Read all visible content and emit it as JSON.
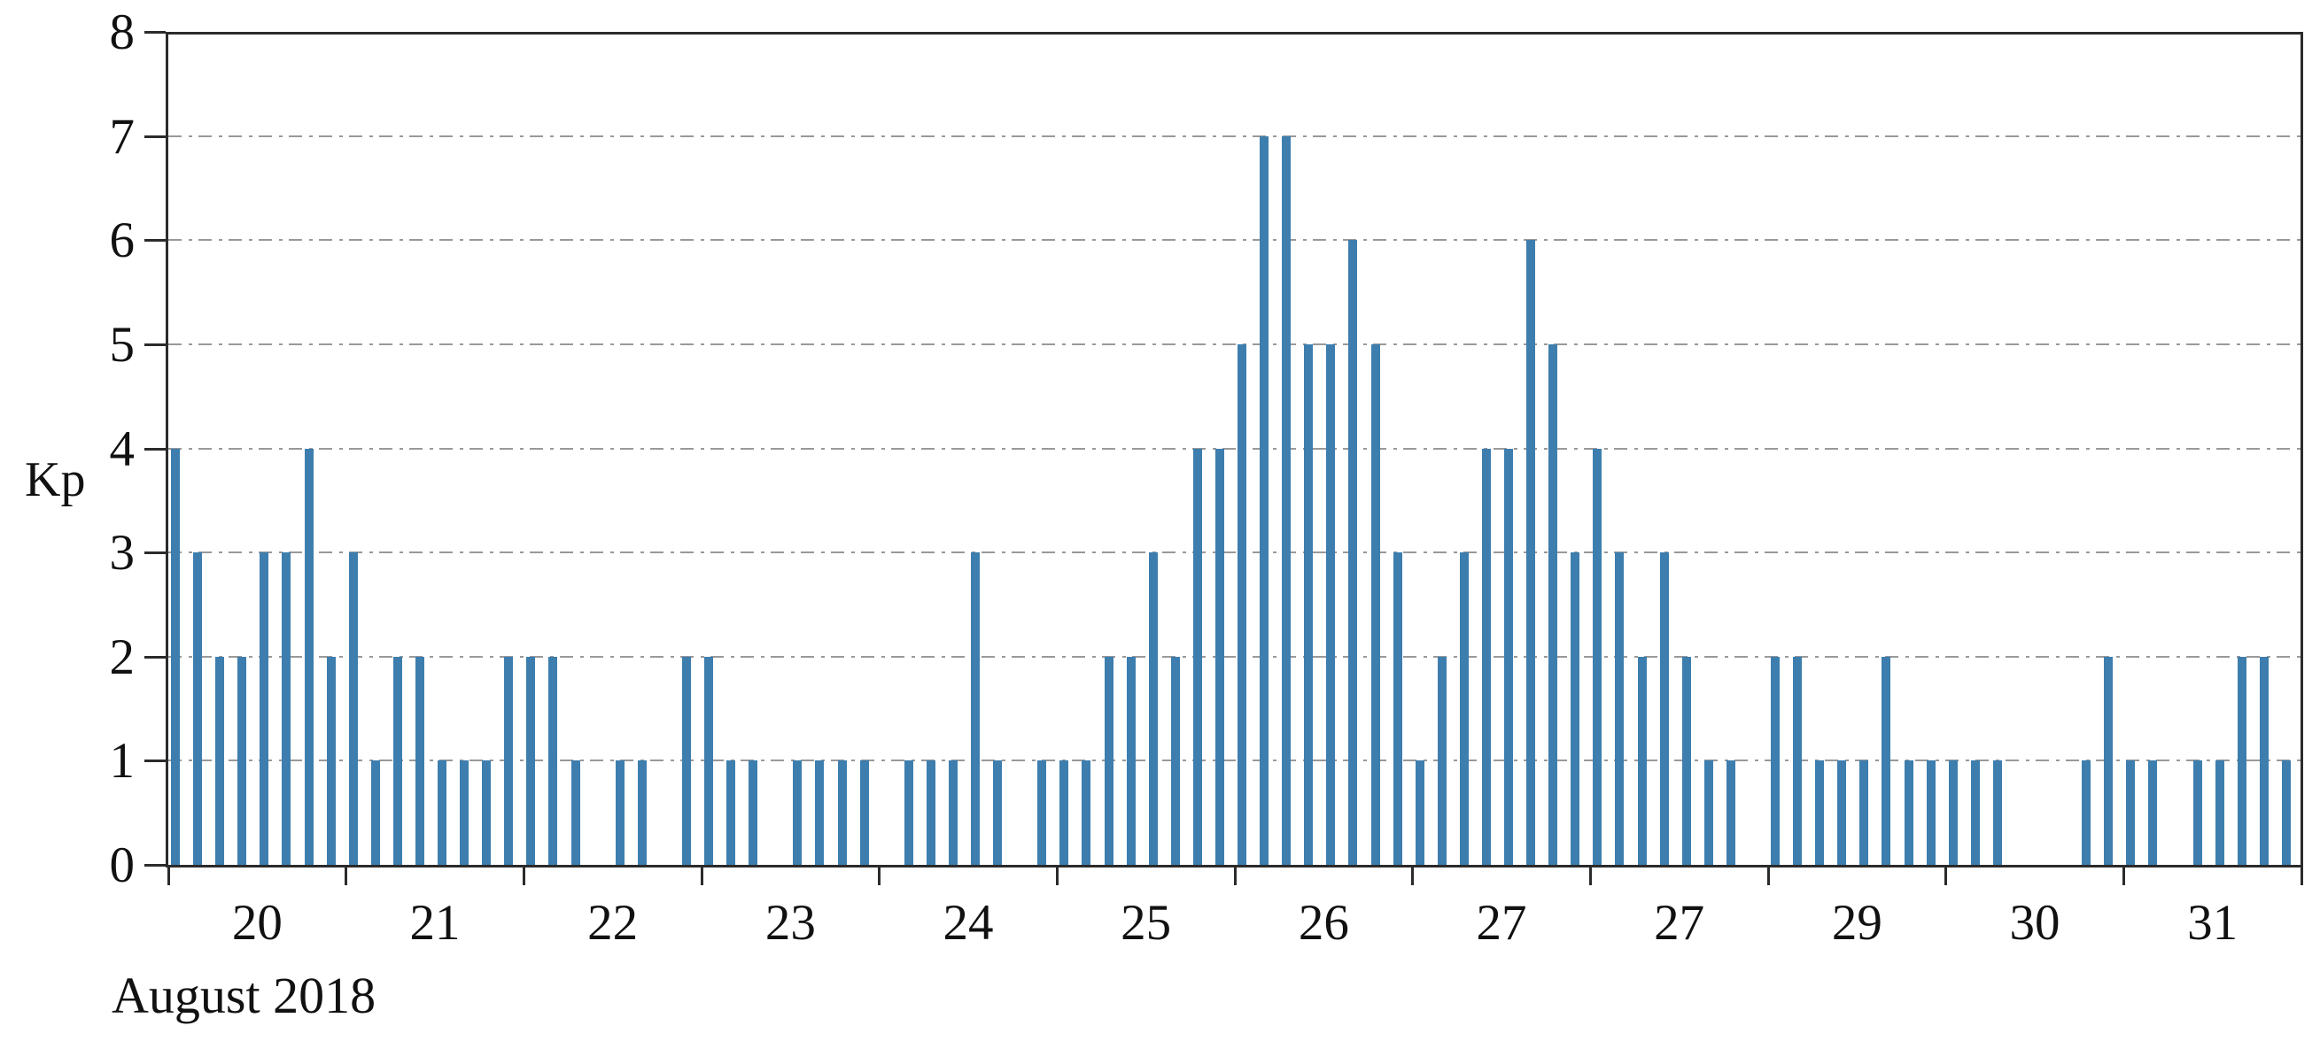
{
  "page": {
    "background": "#ffffff"
  },
  "chart_data": {
    "type": "bar",
    "title": "",
    "ylabel": "Kp",
    "xlabel": "August 2018",
    "ylim": [
      0,
      8
    ],
    "yticks": [
      0,
      1,
      2,
      3,
      4,
      5,
      6,
      7,
      8
    ],
    "grid": "horizontal dash-dot gridlines at Kp = 1..7, solid frame box",
    "legend": "none",
    "bars_per_day": 8,
    "categories": [
      "20",
      "21",
      "22",
      "23",
      "24",
      "25",
      "26",
      "27",
      "27",
      "29",
      "30",
      "31"
    ],
    "series": [
      {
        "day_label": "20",
        "kp_values": [
          4,
          3,
          2,
          2,
          3,
          3,
          4,
          2
        ]
      },
      {
        "day_label": "21",
        "kp_values": [
          3,
          1,
          2,
          2,
          1,
          1,
          1,
          2
        ]
      },
      {
        "day_label": "22",
        "kp_values": [
          2,
          2,
          1,
          0,
          1,
          1,
          0,
          2
        ]
      },
      {
        "day_label": "23",
        "kp_values": [
          2,
          1,
          1,
          0,
          1,
          1,
          1,
          1
        ]
      },
      {
        "day_label": "24",
        "kp_values": [
          0,
          1,
          1,
          1,
          3,
          1,
          0,
          1
        ]
      },
      {
        "day_label": "25",
        "kp_values": [
          1,
          1,
          2,
          2,
          3,
          2,
          4,
          4
        ]
      },
      {
        "day_label": "26",
        "kp_values": [
          5,
          7,
          7,
          5,
          5,
          6,
          5,
          3
        ]
      },
      {
        "day_label": "27",
        "kp_values": [
          1,
          2,
          3,
          4,
          4,
          6,
          5,
          3
        ]
      },
      {
        "day_label": "27",
        "kp_values": [
          4,
          3,
          2,
          3,
          2,
          1,
          1,
          0
        ]
      },
      {
        "day_label": "29",
        "kp_values": [
          2,
          2,
          1,
          1,
          1,
          2,
          1,
          1
        ]
      },
      {
        "day_label": "30",
        "kp_values": [
          1,
          1,
          1,
          0,
          0,
          0,
          1,
          2
        ]
      },
      {
        "day_label": "31",
        "kp_values": [
          1,
          1,
          0,
          1,
          1,
          2,
          2,
          1
        ]
      }
    ],
    "colors": {
      "bar": "#3d7eae",
      "gridline": "#999999",
      "axis": "#2b2b2b",
      "text": "#111111",
      "background": "#ffffff"
    }
  }
}
